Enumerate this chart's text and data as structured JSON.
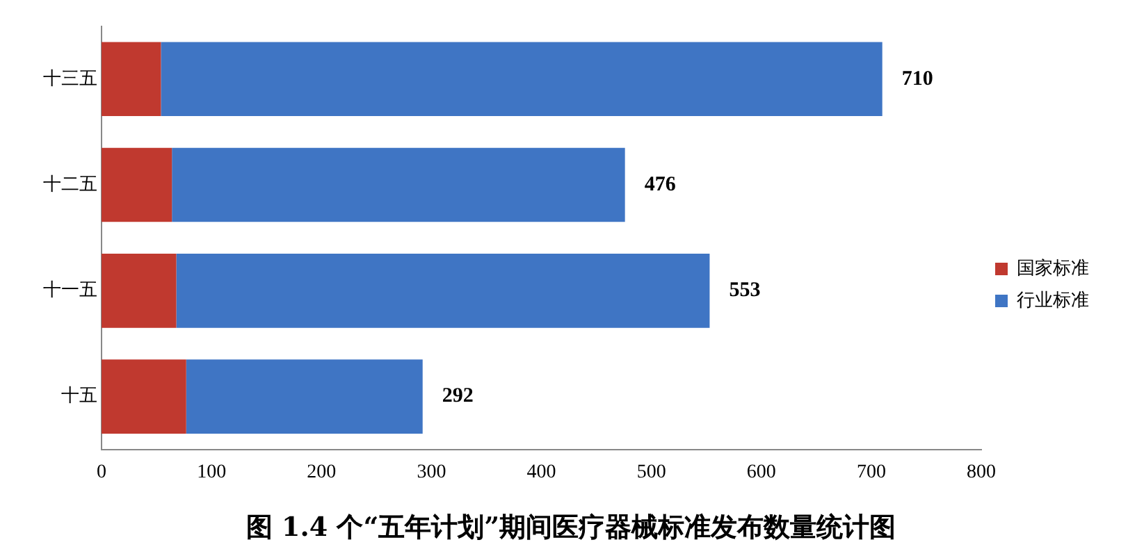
{
  "chart_data": {
    "type": "bar",
    "orientation": "horizontal",
    "stacked": true,
    "title": "图 1.4 个“五年计划”期间医疗器械标准发布数量统计图",
    "categories": [
      "十三五",
      "十二五",
      "十一五",
      "十五"
    ],
    "series": [
      {
        "name": "国家标准",
        "color": "#c0392f",
        "values": [
          54,
          64,
          68,
          77
        ]
      },
      {
        "name": "行业标准",
        "color": "#3f75c4",
        "values": [
          656,
          412,
          485,
          215
        ]
      }
    ],
    "totals": [
      "710",
      "476",
      "553",
      "292"
    ],
    "xlim": [
      0,
      800
    ],
    "xticks": [
      0,
      100,
      200,
      300,
      400,
      500,
      600,
      700,
      800
    ],
    "grid": false,
    "legend": "right"
  }
}
